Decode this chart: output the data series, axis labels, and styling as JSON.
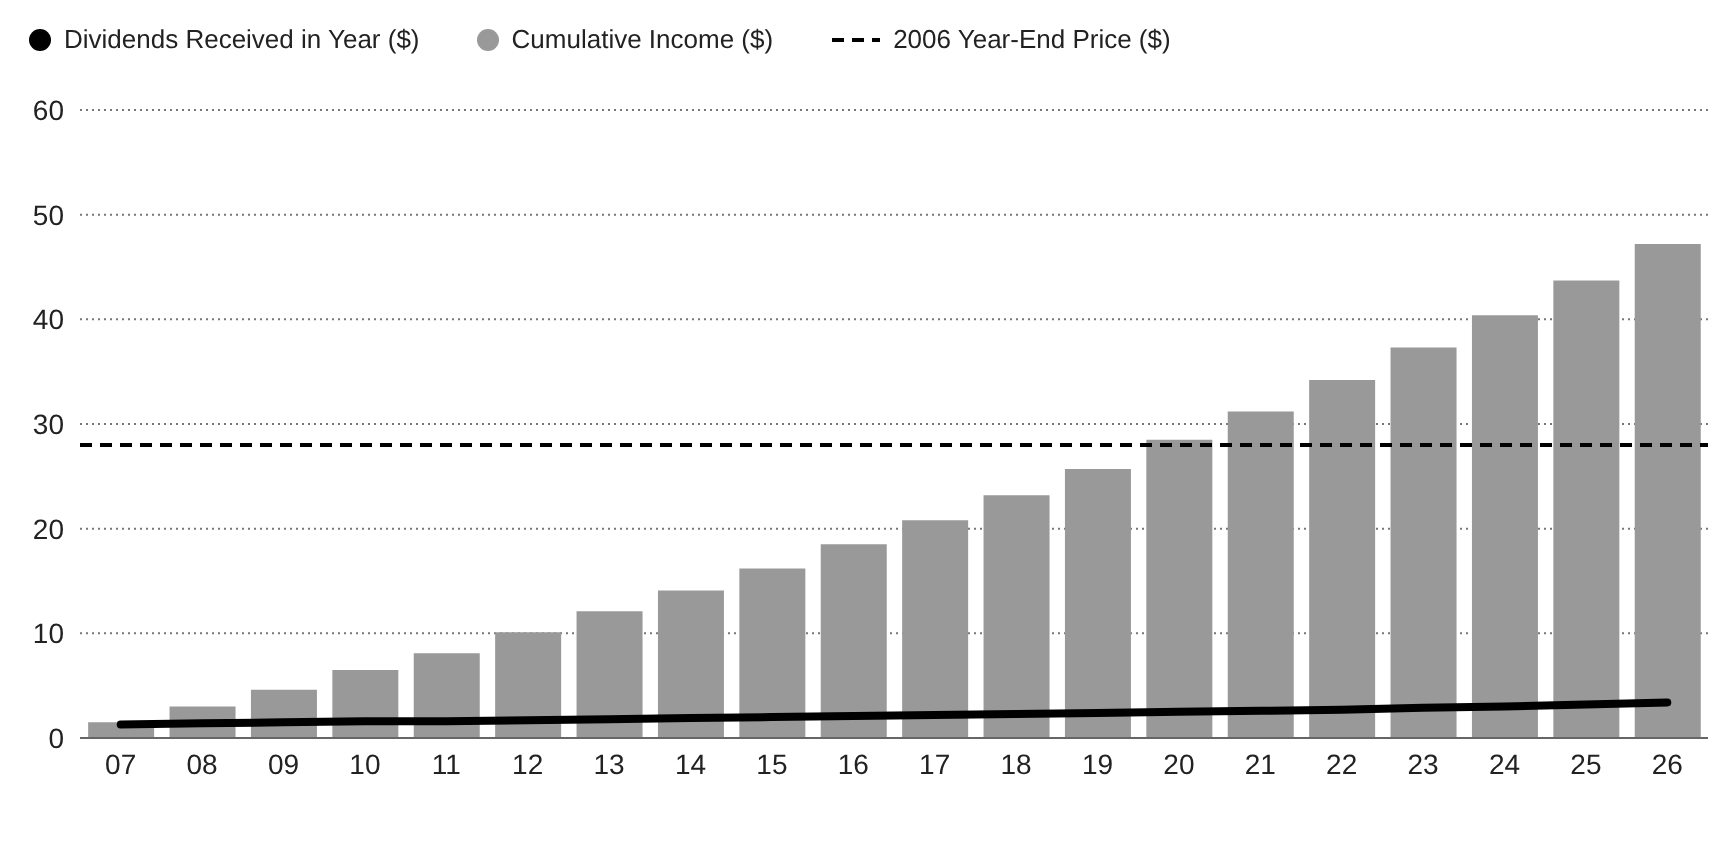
{
  "chart_data": {
    "type": "bar",
    "categories": [
      "07",
      "08",
      "09",
      "10",
      "11",
      "12",
      "13",
      "14",
      "15",
      "16",
      "17",
      "18",
      "19",
      "20",
      "21",
      "22",
      "23",
      "24",
      "25",
      "26"
    ],
    "series": [
      {
        "name": "Dividends Received in Year ($)",
        "type": "line",
        "color": "#000000",
        "values": [
          1.3,
          1.4,
          1.5,
          1.6,
          1.6,
          1.7,
          1.8,
          1.9,
          2.0,
          2.1,
          2.2,
          2.3,
          2.4,
          2.5,
          2.6,
          2.7,
          2.9,
          3.0,
          3.2,
          3.4
        ]
      },
      {
        "name": "Cumulative Income ($)",
        "color": "#999999",
        "values": [
          1.5,
          3.0,
          4.6,
          6.5,
          8.1,
          10.1,
          12.1,
          14.1,
          16.2,
          18.5,
          20.8,
          23.2,
          25.7,
          28.5,
          31.2,
          34.2,
          37.3,
          40.4,
          43.7,
          47.2
        ]
      }
    ],
    "ref_lines": [
      {
        "axis": "y",
        "value": 28,
        "label": "2006 Year-End Price ($)",
        "color": "#000000",
        "line_style": "dashed"
      }
    ],
    "ylim": [
      0,
      60
    ],
    "yticks": [
      0,
      10,
      20,
      30,
      40,
      50,
      60
    ],
    "grid": "y",
    "legend": "top",
    "marker": "none",
    "line_style": "solid"
  }
}
